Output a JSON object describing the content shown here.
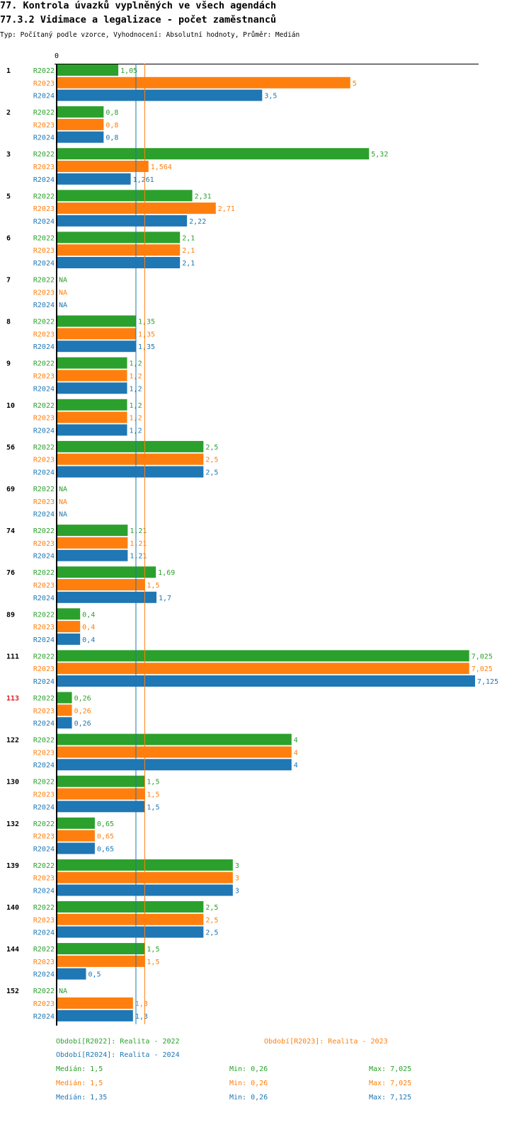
{
  "header": {
    "title_line1": "77. Kontrola úvazků vyplněných ve všech agendách",
    "title_line2": "77.3.2 Vidimace a legalizace - počet zaměstnanců",
    "subtitle": "Typ: Počítaný podle vzorce, Vyhodnocení: Absolutní hodnoty, Průměr: Medián"
  },
  "colors": {
    "R2022": "#2ca02c",
    "R2023": "#ff7f0e",
    "R2024": "#1f77b4",
    "highlight": "#e31a1c",
    "axis": "#000000"
  },
  "chart_data": {
    "type": "bar",
    "orientation": "horizontal",
    "x_axis_tick_label": "0",
    "xlim": [
      0,
      7.125
    ],
    "series_names": [
      "R2022",
      "R2023",
      "R2024"
    ],
    "categories": [
      "1",
      "2",
      "3",
      "5",
      "6",
      "7",
      "8",
      "9",
      "10",
      "56",
      "69",
      "74",
      "76",
      "89",
      "111",
      "113",
      "122",
      "130",
      "132",
      "139",
      "140",
      "144",
      "152"
    ],
    "highlighted_category": "113",
    "series": [
      {
        "name": "R2022",
        "values": [
          1.05,
          0.8,
          5.32,
          2.31,
          2.1,
          null,
          1.35,
          1.2,
          1.2,
          2.5,
          null,
          1.21,
          1.69,
          0.4,
          7.025,
          0.26,
          4,
          1.5,
          0.65,
          3,
          2.5,
          1.5,
          null
        ],
        "labels": [
          "1,05",
          "0,8",
          "5,32",
          "2,31",
          "2,1",
          "NA",
          "1,35",
          "1,2",
          "1,2",
          "2,5",
          "NA",
          "1,21",
          "1,69",
          "0,4",
          "7,025",
          "0,26",
          "4",
          "1,5",
          "0,65",
          "3",
          "2,5",
          "1,5",
          "NA"
        ]
      },
      {
        "name": "R2023",
        "values": [
          5,
          0.8,
          1.564,
          2.71,
          2.1,
          null,
          1.35,
          1.2,
          1.2,
          2.5,
          null,
          1.21,
          1.5,
          0.4,
          7.025,
          0.26,
          4,
          1.5,
          0.65,
          3,
          2.5,
          1.5,
          1.3
        ],
        "labels": [
          "5",
          "0,8",
          "1,564",
          "2,71",
          "2,1",
          "NA",
          "1,35",
          "1,2",
          "1,2",
          "2,5",
          "NA",
          "1,21",
          "1,5",
          "0,4",
          "7,025",
          "0,26",
          "4",
          "1,5",
          "0,65",
          "3",
          "2,5",
          "1,5",
          "1,3"
        ]
      },
      {
        "name": "R2024",
        "values": [
          3.5,
          0.8,
          1.261,
          2.22,
          2.1,
          null,
          1.35,
          1.2,
          1.2,
          2.5,
          null,
          1.21,
          1.7,
          0.4,
          7.125,
          0.26,
          4,
          1.5,
          0.65,
          3,
          2.5,
          0.5,
          1.3
        ],
        "labels": [
          "3,5",
          "0,8",
          "1,261",
          "2,22",
          "2,1",
          "NA",
          "1,35",
          "1,2",
          "1,2",
          "2,5",
          "NA",
          "1,21",
          "1,7",
          "0,4",
          "7,125",
          "0,26",
          "4",
          "1,5",
          "0,65",
          "3",
          "2,5",
          "0,5",
          "1,3"
        ]
      }
    ],
    "reference_lines": [
      {
        "series": "R2024",
        "value": 1.35
      },
      {
        "series": "R2023",
        "value": 1.5
      }
    ]
  },
  "legend": {
    "period_2022": "Období[R2022]: Realita - 2022",
    "period_2023": "Období[R2023]: Realita - 2023",
    "period_2024": "Období[R2024]: Realita - 2024",
    "stats": [
      {
        "series": "R2022",
        "median": "Medián: 1,5",
        "min": "Min: 0,26",
        "max": "Max: 7,025"
      },
      {
        "series": "R2023",
        "median": "Medián: 1,5",
        "min": "Min: 0,26",
        "max": "Max: 7,025"
      },
      {
        "series": "R2024",
        "median": "Medián: 1,35",
        "min": "Min: 0,26",
        "max": "Max: 7,125"
      }
    ]
  }
}
